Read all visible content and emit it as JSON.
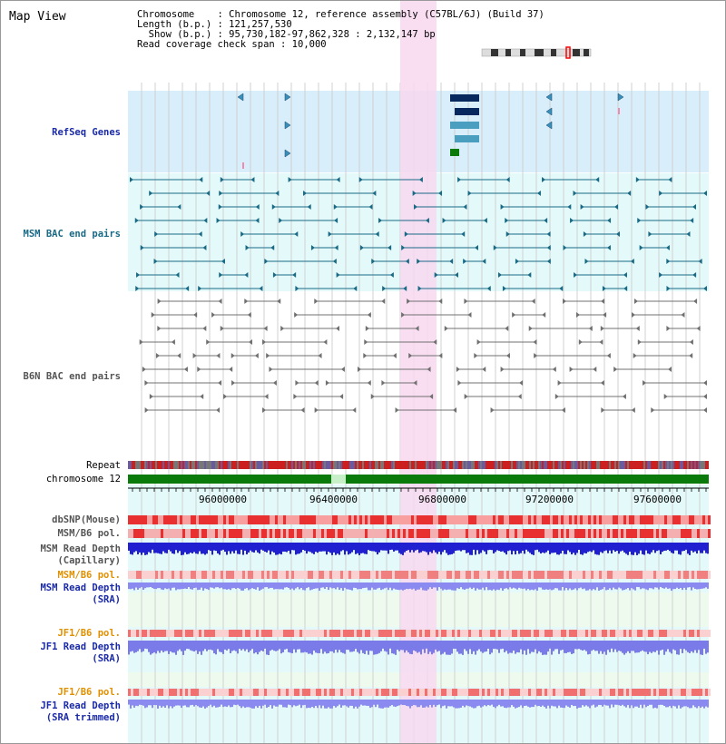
{
  "title": "Map View",
  "info": {
    "chromosome_line": "Chromosome    : Chromosome 12, reference assembly (C57BL/6J) (Build 37)",
    "length_line": "Length (b.p.) : 121,257,530",
    "show_line": "  Show (b.p.) : 95,730,182-97,862,328 : 2,132,147 bp",
    "coverage_line": "Read coverage check span : 10,000"
  },
  "tracks": {
    "refseq": "RefSeq Genes",
    "msm_bac": "MSM BAC end pairs",
    "b6n_bac": "B6N BAC end pairs",
    "repeat": "Repeat",
    "chromosome": "chromosome 12",
    "dbsnp": "dbSNP(Mouse)",
    "msm_b6_pol": "MSM/B6 pol.",
    "msm_depth_cap": "MSM Read Depth",
    "msm_depth_cap_sub": "(Capillary)",
    "msm_b6_pol2": "MSM/B6 pol.",
    "msm_depth_sra": "MSM Read Depth",
    "msm_depth_sra_sub": "(SRA)",
    "jf1_b6_pol": "JF1/B6 pol.",
    "jf1_depth_sra": "JF1 Read Depth",
    "jf1_depth_sra_sub": "(SRA)",
    "jf1_b6_pol2": "JF1/B6 pol.",
    "jf1_depth_trim": "JF1 Read Depth",
    "jf1_depth_trim_sub": "(SRA trimmed)"
  },
  "axis": {
    "ticks": [
      "96000000",
      "96400000",
      "96800000",
      "97200000",
      "97600000"
    ]
  },
  "colors": {
    "refseq_bg": "#d8eefa",
    "bac_bg": "#e4fafa",
    "highlight": "#f8d8f0",
    "chrom_green": "#0a7a0a"
  }
}
